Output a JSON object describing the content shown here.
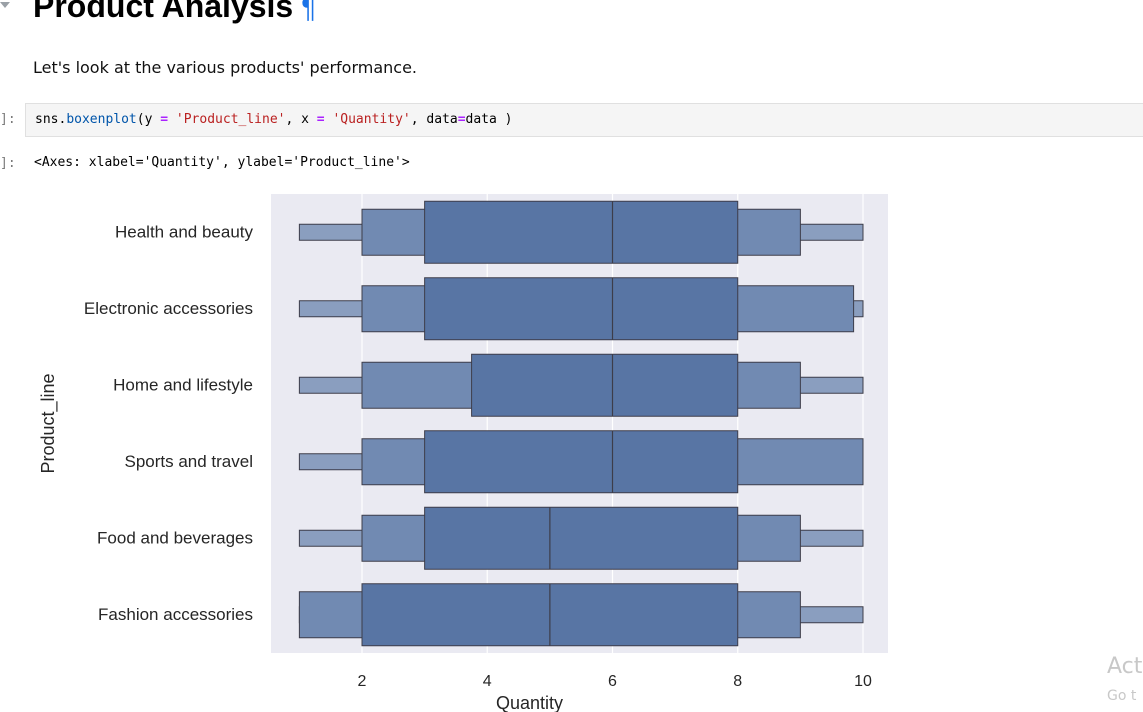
{
  "notebook": {
    "heading": "Product Analysis",
    "heading_anchor": "¶",
    "markdown_text": "Let's look at the various products' performance.",
    "code_prompt": "]:",
    "code": {
      "prefix": "sns.",
      "fn": "boxenplot",
      "p1": "(y ",
      "op1": "=",
      "p2": " ",
      "s1": "'Product_line'",
      "p3": ", x ",
      "op2": "=",
      "p4": " ",
      "s2": "'Quantity'",
      "p5": ", data",
      "op3": "=",
      "p6": "data )"
    },
    "output_prompt": "]:",
    "output_text": "<Axes: xlabel='Quantity', ylabel='Product_line'>"
  },
  "watermark": {
    "line1": "Act",
    "line2": "Go t"
  },
  "chart_data": {
    "type": "boxenplot",
    "xlabel": "Quantity",
    "ylabel": "Product_line",
    "xticks": [
      2,
      4,
      6,
      8,
      10
    ],
    "xlim": [
      0.5,
      10.8
    ],
    "grid": true,
    "background": "#eaeaf2",
    "box_color": "#5875a4",
    "categories": [
      "Health and beauty",
      "Electronic accessories",
      "Home and lifestyle",
      "Sports and travel",
      "Food and beverages",
      "Fashion accessories"
    ],
    "series": [
      {
        "category": "Health and beauty",
        "median": 6,
        "levels": [
          [
            3,
            8
          ],
          [
            2,
            9
          ],
          [
            1,
            10
          ]
        ]
      },
      {
        "category": "Electronic accessories",
        "median": 6,
        "levels": [
          [
            3,
            8
          ],
          [
            2,
            9.85
          ],
          [
            1,
            10
          ]
        ]
      },
      {
        "category": "Home and lifestyle",
        "median": 6,
        "levels": [
          [
            3.75,
            8
          ],
          [
            2,
            9
          ],
          [
            1,
            10
          ]
        ]
      },
      {
        "category": "Sports and travel",
        "median": 6,
        "levels": [
          [
            3,
            8
          ],
          [
            2,
            10
          ],
          [
            1,
            10
          ]
        ]
      },
      {
        "category": "Food and beverages",
        "median": 5,
        "levels": [
          [
            3,
            8
          ],
          [
            2,
            9
          ],
          [
            1,
            10
          ]
        ]
      },
      {
        "category": "Fashion accessories",
        "median": 5,
        "levels": [
          [
            2,
            8
          ],
          [
            1,
            9
          ],
          [
            1,
            10
          ]
        ]
      }
    ]
  }
}
